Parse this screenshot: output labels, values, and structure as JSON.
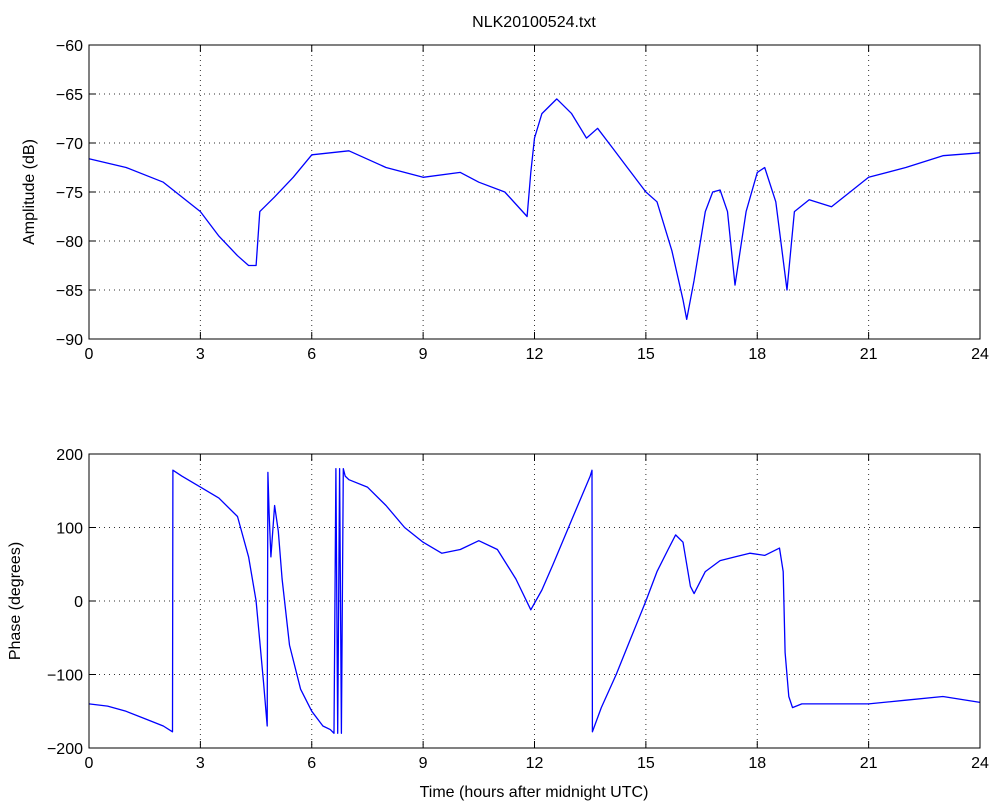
{
  "figure": {
    "title": "NLK20100524.txt"
  },
  "chart_data": [
    {
      "type": "line",
      "title": "NLK20100524.txt",
      "xlabel": "",
      "ylabel": "Amplitude (dB)",
      "xlim": [
        0,
        24
      ],
      "ylim": [
        -90,
        -60
      ],
      "xticks": [
        0,
        3,
        6,
        9,
        12,
        15,
        18,
        21,
        24
      ],
      "yticks": [
        -90,
        -85,
        -80,
        -75,
        -70,
        -65,
        -60
      ],
      "grid": true,
      "color": "#0000ff",
      "series": [
        {
          "x": [
            0,
            1,
            2,
            3,
            3.5,
            4,
            4.3,
            4.5,
            4.6,
            5,
            5.5,
            6,
            7,
            8,
            9,
            10,
            10.5,
            11.2,
            11.8,
            11.9,
            12.0,
            12.2,
            12.6,
            13,
            13.4,
            13.7,
            14.1,
            14.5,
            15,
            15.3,
            15.7,
            16.0,
            16.1,
            16.3,
            16.6,
            16.8,
            17.0,
            17.2,
            17.4,
            17.5,
            17.7,
            18.0,
            18.2,
            18.5,
            18.8,
            19.0,
            19.4,
            20.0,
            20.5,
            21,
            22,
            23,
            24
          ],
          "y": [
            -71.6,
            -72.5,
            -74,
            -77,
            -79.5,
            -81.5,
            -82.5,
            -82.5,
            -77,
            -75.5,
            -73.5,
            -71.2,
            -70.8,
            -72.5,
            -73.5,
            -73,
            -74,
            -75,
            -77.5,
            -73,
            -69.5,
            -67,
            -65.5,
            -67,
            -69.5,
            -68.5,
            -70.5,
            -72.5,
            -75,
            -76,
            -81,
            -86,
            -88,
            -84,
            -77,
            -75,
            -74.8,
            -77,
            -84.5,
            -82,
            -77,
            -73,
            -72.5,
            -76,
            -85,
            -77,
            -75.8,
            -76.5,
            -75,
            -73.5,
            -72.5,
            -71.3,
            -71
          ]
        }
      ]
    },
    {
      "type": "line",
      "title": "",
      "xlabel": "Time (hours after midnight UTC)",
      "ylabel": "Phase (degrees)",
      "xlim": [
        0,
        24
      ],
      "ylim": [
        -200,
        200
      ],
      "xticks": [
        0,
        3,
        6,
        9,
        12,
        15,
        18,
        21,
        24
      ],
      "yticks": [
        -200,
        -100,
        0,
        100,
        200
      ],
      "grid": true,
      "color": "#0000ff",
      "series": [
        {
          "x": [
            0,
            0.5,
            1,
            1.5,
            2.0,
            2.25,
            2.26,
            2.5,
            3,
            3.5,
            4,
            4.3,
            4.5,
            4.7,
            4.8,
            4.82,
            4.85,
            4.9,
            5.0,
            5.1,
            5.2,
            5.4,
            5.7,
            6,
            6.3,
            6.5,
            6.6,
            6.65,
            6.7,
            6.75,
            6.8,
            6.85,
            6.9,
            7.0,
            7.5,
            8,
            8.5,
            9,
            9.5,
            10,
            10.5,
            11,
            11.5,
            11.9,
            12.2,
            12.5,
            13,
            13.5,
            13.55,
            13.56,
            13.8,
            14.2,
            14.6,
            15,
            15.3,
            15.6,
            15.8,
            16.0,
            16.2,
            16.3,
            16.6,
            17.0,
            17.4,
            17.8,
            18.2,
            18.6,
            18.7,
            18.75,
            18.85,
            18.95,
            19.2,
            20,
            21,
            22,
            23,
            24
          ],
          "y": [
            -140,
            -143,
            -150,
            -160,
            -170,
            -178,
            178,
            170,
            155,
            140,
            115,
            60,
            0,
            -110,
            -170,
            175,
            120,
            60,
            130,
            95,
            30,
            -60,
            -120,
            -150,
            -170,
            -175,
            -180,
            180,
            -180,
            180,
            -180,
            180,
            170,
            165,
            155,
            130,
            100,
            80,
            65,
            70,
            82,
            70,
            30,
            -12,
            15,
            50,
            110,
            170,
            178,
            -178,
            -145,
            -100,
            -50,
            0,
            40,
            70,
            90,
            80,
            20,
            10,
            40,
            55,
            60,
            65,
            62,
            72,
            40,
            -70,
            -130,
            -145,
            -140,
            -140,
            -140,
            -135,
            -130,
            -138
          ]
        }
      ]
    }
  ]
}
